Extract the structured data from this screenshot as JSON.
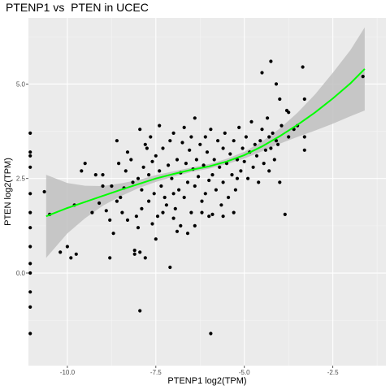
{
  "chart_data": {
    "type": "scatter",
    "title": "PTENP1 vs  PTEN in UCEC",
    "xlabel": "PTENP1 log2(TPM)",
    "ylabel": "PTEN log2(TPM)",
    "xlim": [
      -11.1,
      -1.0
    ],
    "ylim": [
      -2.45,
      6.75
    ],
    "x_ticks": [
      -10.0,
      -7.5,
      -5.0,
      -2.5
    ],
    "x_tick_labels": [
      "-10.0",
      "-7.5",
      "-5.0",
      "-2.5"
    ],
    "y_ticks": [
      0.0,
      2.5,
      5.0
    ],
    "y_tick_labels": [
      "0.0",
      "2.5",
      "5.0"
    ],
    "grid": true,
    "background": "#ebebeb",
    "point_color": "#000000",
    "smooth": {
      "method": "loess",
      "color": "#00ff00",
      "band_color": "#bfbfbf",
      "x": [
        -10.6,
        -10.0,
        -9.5,
        -9.0,
        -8.5,
        -8.0,
        -7.5,
        -7.0,
        -6.5,
        -6.0,
        -5.5,
        -5.0,
        -4.5,
        -4.0,
        -3.5,
        -3.0,
        -2.5,
        -2.0,
        -1.6
      ],
      "y": [
        1.5,
        1.72,
        1.88,
        2.04,
        2.2,
        2.35,
        2.5,
        2.62,
        2.73,
        2.82,
        2.95,
        3.12,
        3.35,
        3.62,
        3.92,
        4.25,
        4.62,
        5.02,
        5.4
      ],
      "lower": [
        0.4,
        1.05,
        1.45,
        1.78,
        2.03,
        2.24,
        2.41,
        2.55,
        2.67,
        2.76,
        2.88,
        3.03,
        3.22,
        3.42,
        3.6,
        3.77,
        3.95,
        4.15,
        4.3
      ],
      "upper": [
        2.6,
        2.38,
        2.31,
        2.3,
        2.37,
        2.46,
        2.59,
        2.69,
        2.79,
        2.88,
        3.02,
        3.21,
        3.48,
        3.82,
        4.24,
        4.73,
        5.3,
        5.9,
        6.5
      ]
    },
    "points": [
      [
        -11.05,
        3.7
      ],
      [
        -11.05,
        3.2
      ],
      [
        -11.05,
        3.1
      ],
      [
        -11.05,
        2.8
      ],
      [
        -11.05,
        2.1
      ],
      [
        -11.05,
        1.6
      ],
      [
        -11.05,
        1.2
      ],
      [
        -11.05,
        0.7
      ],
      [
        -11.05,
        0.25
      ],
      [
        -11.05,
        0.0
      ],
      [
        -11.05,
        -0.5
      ],
      [
        -11.05,
        -0.9
      ],
      [
        -11.05,
        -1.6
      ],
      [
        -10.65,
        2.15
      ],
      [
        -10.5,
        1.55
      ],
      [
        -10.2,
        0.55
      ],
      [
        -10.0,
        0.7
      ],
      [
        -9.9,
        0.4
      ],
      [
        -9.8,
        1.8
      ],
      [
        -9.75,
        0.5
      ],
      [
        -9.6,
        2.7
      ],
      [
        -9.5,
        2.9
      ],
      [
        -9.2,
        2.6
      ],
      [
        -9.1,
        1.85
      ],
      [
        -9.0,
        2.3
      ],
      [
        -9.0,
        2.6
      ],
      [
        -8.9,
        1.65
      ],
      [
        -8.8,
        0.4
      ],
      [
        -8.75,
        2.3
      ],
      [
        -8.7,
        1.05
      ],
      [
        -8.6,
        3.5
      ],
      [
        -8.55,
        2.9
      ],
      [
        -8.5,
        2.0
      ],
      [
        -8.45,
        1.6
      ],
      [
        -8.4,
        2.25
      ],
      [
        -8.35,
        2.7
      ],
      [
        -8.3,
        3.2
      ],
      [
        -8.2,
        3.0
      ],
      [
        -8.15,
        2.4
      ],
      [
        -8.1,
        0.6
      ],
      [
        -8.1,
        0.5
      ],
      [
        -8.05,
        1.5
      ],
      [
        -8.0,
        2.5
      ],
      [
        -7.95,
        3.8
      ],
      [
        -7.9,
        2.2
      ],
      [
        -7.85,
        2.8
      ],
      [
        -7.8,
        3.4
      ],
      [
        -7.8,
        0.4
      ],
      [
        -7.75,
        3.3
      ],
      [
        -7.7,
        2.6
      ],
      [
        -7.7,
        1.9
      ],
      [
        -7.65,
        3.6
      ],
      [
        -7.6,
        2.95
      ],
      [
        -7.55,
        2.1
      ],
      [
        -7.5,
        3.1
      ],
      [
        -7.45,
        1.5
      ],
      [
        -7.4,
        2.7
      ],
      [
        -7.4,
        3.9
      ],
      [
        -7.35,
        2.3
      ],
      [
        -7.3,
        3.3
      ],
      [
        -7.25,
        2.0
      ],
      [
        -7.2,
        1.8
      ],
      [
        -7.15,
        2.85
      ],
      [
        -7.1,
        3.5
      ],
      [
        -7.1,
        0.15
      ],
      [
        -7.05,
        2.5
      ],
      [
        -7.0,
        3.7
      ],
      [
        -7.0,
        2.1
      ],
      [
        -6.95,
        1.7
      ],
      [
        -6.9,
        3.0
      ],
      [
        -6.85,
        2.2
      ],
      [
        -6.8,
        2.65
      ],
      [
        -6.8,
        1.25
      ],
      [
        -6.75,
        3.45
      ],
      [
        -6.7,
        3.85
      ],
      [
        -6.7,
        2.0
      ],
      [
        -6.65,
        2.9
      ],
      [
        -6.6,
        2.4
      ],
      [
        -6.55,
        3.25
      ],
      [
        -6.5,
        1.6
      ],
      [
        -6.5,
        3.6
      ],
      [
        -6.45,
        2.75
      ],
      [
        -6.4,
        4.1
      ],
      [
        -6.4,
        2.3
      ],
      [
        -6.35,
        3.0
      ],
      [
        -6.3,
        2.55
      ],
      [
        -6.25,
        3.4
      ],
      [
        -6.2,
        1.9
      ],
      [
        -6.15,
        2.85
      ],
      [
        -6.1,
        3.6
      ],
      [
        -6.1,
        2.1
      ],
      [
        -6.05,
        3.2
      ],
      [
        -6.0,
        2.45
      ],
      [
        -5.95,
        3.8
      ],
      [
        -5.9,
        2.6
      ],
      [
        -5.9,
        1.55
      ],
      [
        -5.85,
        3.0
      ],
      [
        -5.8,
        2.2
      ],
      [
        -5.75,
        3.5
      ],
      [
        -5.7,
        2.8
      ],
      [
        -5.65,
        1.8
      ],
      [
        -5.6,
        3.3
      ],
      [
        -5.6,
        2.4
      ],
      [
        -5.55,
        3.7
      ],
      [
        -5.5,
        2.9
      ],
      [
        -5.45,
        2.0
      ],
      [
        -5.4,
        3.15
      ],
      [
        -5.35,
        2.6
      ],
      [
        -5.3,
        3.5
      ],
      [
        -5.25,
        2.2
      ],
      [
        -5.2,
        3.0
      ],
      [
        -5.15,
        3.85
      ],
      [
        -5.1,
        2.7
      ],
      [
        -5.05,
        3.3
      ],
      [
        -5.0,
        2.95
      ],
      [
        -4.95,
        3.6
      ],
      [
        -4.9,
        2.5
      ],
      [
        -4.85,
        3.2
      ],
      [
        -4.8,
        4.0
      ],
      [
        -4.75,
        2.8
      ],
      [
        -4.7,
        3.4
      ],
      [
        -4.65,
        3.1
      ],
      [
        -4.6,
        2.4
      ],
      [
        -4.55,
        3.5
      ],
      [
        -4.5,
        3.8
      ],
      [
        -4.45,
        2.9
      ],
      [
        -4.4,
        3.25
      ],
      [
        -4.35,
        4.1
      ],
      [
        -4.3,
        3.6
      ],
      [
        -4.3,
        2.7
      ],
      [
        -4.25,
        3.3
      ],
      [
        -4.2,
        3.7
      ],
      [
        -4.15,
        3.0
      ],
      [
        -4.1,
        3.5
      ],
      [
        -4.05,
        3.4
      ],
      [
        -4.0,
        2.4
      ],
      [
        -3.95,
        3.9
      ],
      [
        -3.85,
        1.55
      ],
      [
        -3.75,
        3.6
      ],
      [
        -3.6,
        3.8
      ],
      [
        -3.5,
        3.9
      ],
      [
        -3.3,
        3.6
      ],
      [
        -3.3,
        3.25
      ],
      [
        -3.3,
        4.6
      ],
      [
        -3.35,
        5.45
      ],
      [
        -3.8,
        4.3
      ],
      [
        -4.0,
        4.6
      ],
      [
        -4.1,
        5.0
      ],
      [
        -4.5,
        5.3
      ],
      [
        -4.25,
        5.6
      ],
      [
        -3.75,
        4.25
      ],
      [
        -1.65,
        5.2
      ],
      [
        -7.6,
        1.3
      ],
      [
        -7.5,
        0.9
      ],
      [
        -8.0,
        1.2
      ],
      [
        -7.95,
        0.55
      ],
      [
        -8.3,
        1.4
      ],
      [
        -6.6,
        1.05
      ],
      [
        -6.4,
        1.25
      ],
      [
        -5.95,
        -1.6
      ],
      [
        -7.95,
        -1.0
      ],
      [
        -5.6,
        1.5
      ],
      [
        -5.3,
        1.6
      ],
      [
        -5.2,
        2.5
      ],
      [
        -6.0,
        1.5
      ],
      [
        -6.2,
        1.6
      ],
      [
        -7.3,
        1.6
      ],
      [
        -8.8,
        1.4
      ],
      [
        -9.3,
        1.6
      ],
      [
        -8.6,
        1.9
      ],
      [
        -7.9,
        1.7
      ],
      [
        -7.0,
        1.45
      ],
      [
        -6.9,
        1.1
      ]
    ]
  }
}
